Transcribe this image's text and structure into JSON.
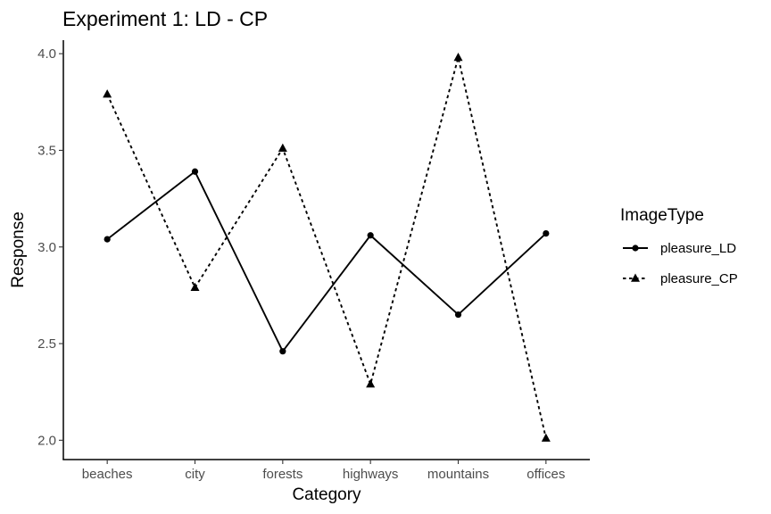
{
  "chart_data": {
    "type": "line",
    "title": "Experiment 1: LD - CP",
    "xlabel": "Category",
    "ylabel": "Response",
    "categories": [
      "beaches",
      "city",
      "forests",
      "highways",
      "mountains",
      "offices"
    ],
    "ylim": [
      1.9,
      4.07
    ],
    "yticks": [
      2.0,
      2.5,
      3.0,
      3.5,
      4.0
    ],
    "ytick_labels": [
      "2.0",
      "2.5",
      "3.0",
      "3.5",
      "4.0"
    ],
    "grid": false,
    "legend": {
      "title": "ImageType",
      "placement": "right"
    },
    "series": [
      {
        "name": "pleasure_LD",
        "marker": "circle",
        "line": "solid",
        "color": "#000000",
        "values": [
          3.04,
          3.39,
          2.46,
          3.06,
          2.65,
          3.07
        ]
      },
      {
        "name": "pleasure_CP",
        "marker": "triangle",
        "line": "dotted",
        "color": "#000000",
        "values": [
          3.79,
          2.79,
          3.51,
          2.29,
          3.98,
          2.01
        ]
      }
    ]
  }
}
